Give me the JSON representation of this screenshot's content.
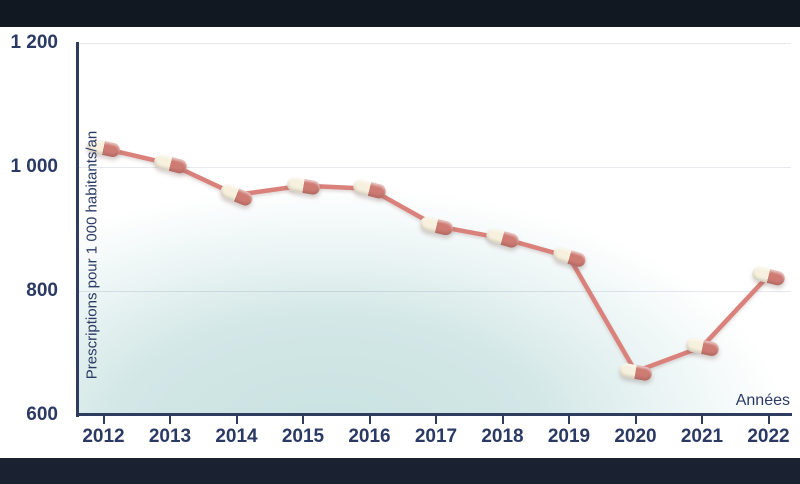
{
  "chart_data": {
    "type": "line",
    "x": [
      "2012",
      "2013",
      "2014",
      "2015",
      "2016",
      "2017",
      "2018",
      "2019",
      "2020",
      "2021",
      "2022"
    ],
    "series": [
      {
        "name": "Prescriptions pour 1 000 habitants/an",
        "values": [
          1030,
          1005,
          955,
          970,
          965,
          905,
          885,
          855,
          670,
          710,
          825
        ]
      }
    ],
    "xlabel": "Années",
    "ylabel": "Prescriptions pour 1 000 habitants/an",
    "ylim": [
      600,
      1200
    ],
    "yticks": [
      {
        "value": 600,
        "label": "600"
      },
      {
        "value": 800,
        "label": "800"
      },
      {
        "value": 1000,
        "label": "1 000"
      },
      {
        "value": 1200,
        "label": "1 200"
      }
    ],
    "grid": "horizontal-faint",
    "legend": "none",
    "marker": "two-tone-capsule-pill",
    "colors": {
      "line": "#d9817a",
      "pill_body": "#ce7b73",
      "pill_cap": "#f6f0dd",
      "axis": "#2e3c5e",
      "labels": "#2b3a64",
      "plot_gradient": "#c9e2e1",
      "top_bar": "#121822",
      "bottom_bar": "#1a2231",
      "background": "#ffffff"
    }
  }
}
